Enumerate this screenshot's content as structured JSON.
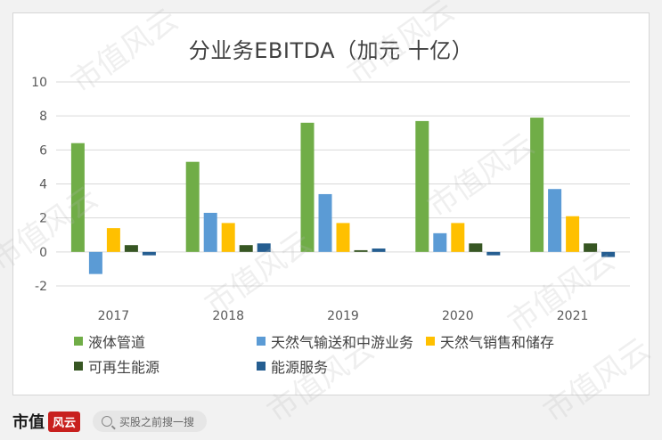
{
  "chart_data": {
    "type": "bar",
    "title": "分业务EBITDA（加元 十亿）",
    "categories": [
      "2017",
      "2018",
      "2019",
      "2020",
      "2021"
    ],
    "ylim": [
      -2,
      10
    ],
    "yticks": [
      -2,
      0,
      2,
      4,
      6,
      8,
      10
    ],
    "grid": true,
    "legend_position": "bottom",
    "series": [
      {
        "name": "液体管道",
        "color": "#70ad47",
        "values": [
          6.4,
          5.3,
          7.6,
          7.7,
          7.9
        ]
      },
      {
        "name": "天然气输送和中游业务",
        "color": "#5b9bd5",
        "values": [
          -1.3,
          2.3,
          3.4,
          1.1,
          3.7
        ]
      },
      {
        "name": "天然气销售和储存",
        "color": "#ffc000",
        "values": [
          1.4,
          1.7,
          1.7,
          1.7,
          2.1
        ]
      },
      {
        "name": "可再生能源",
        "color": "#375623",
        "values": [
          0.4,
          0.4,
          0.1,
          0.5,
          0.5
        ]
      },
      {
        "name": "能源服务",
        "color": "#255e91",
        "values": [
          -0.2,
          0.5,
          0.2,
          -0.2,
          -0.3
        ]
      }
    ]
  },
  "watermark": "市值风云",
  "footer": {
    "brand": "市值",
    "badge": "风云",
    "search_placeholder": "买股之前搜一搜"
  }
}
